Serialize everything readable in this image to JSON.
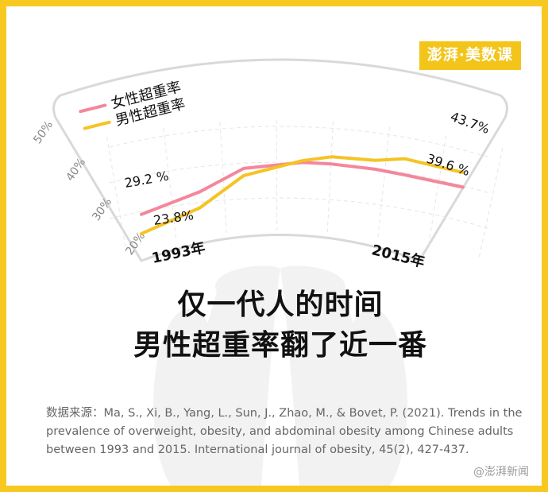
{
  "brand": {
    "logo_text": "澎湃·美数课",
    "accent": "#f3c51b"
  },
  "headline": {
    "line1": "仅一代人的时间",
    "line2": "男性超重率翻了近一番"
  },
  "source_text": "数据来源：Ma, S., Xi, B., Yang, L., Sun, J., Zhao, M., & Bovet, P. (2021). Trends in the prevalence of overweight, obesity, and abdominal obesity among Chinese adults between 1993 and 2015. International journal of obesity, 45(2), 427-437.",
  "watermark": "@澎湃新闻",
  "chart_data": {
    "type": "line",
    "title": "",
    "xlabel": "",
    "ylabel": "",
    "x_tick_labels": [
      "1993年",
      "2015年"
    ],
    "y_tick_labels": [
      "20%",
      "30%",
      "40%",
      "50%"
    ],
    "ylim": [
      20,
      50
    ],
    "x": [
      1993,
      1997,
      2000,
      2004,
      2006,
      2009,
      2011,
      2015
    ],
    "grid": true,
    "legend": "top-left",
    "series": [
      {
        "name": "女性超重率",
        "color": "#f4879b",
        "values": [
          29.2,
          33.0,
          38.5,
          40.0,
          40.0,
          39.8,
          39.5,
          39.6
        ],
        "start_label": "29.2 %",
        "end_label": "39.6 %"
      },
      {
        "name": "男性超重率",
        "color": "#f5c324",
        "values": [
          23.8,
          28.5,
          36.5,
          40.5,
          42.0,
          42.3,
          44.0,
          43.7
        ],
        "start_label": "23.8%",
        "end_label": "43.7%"
      }
    ]
  }
}
